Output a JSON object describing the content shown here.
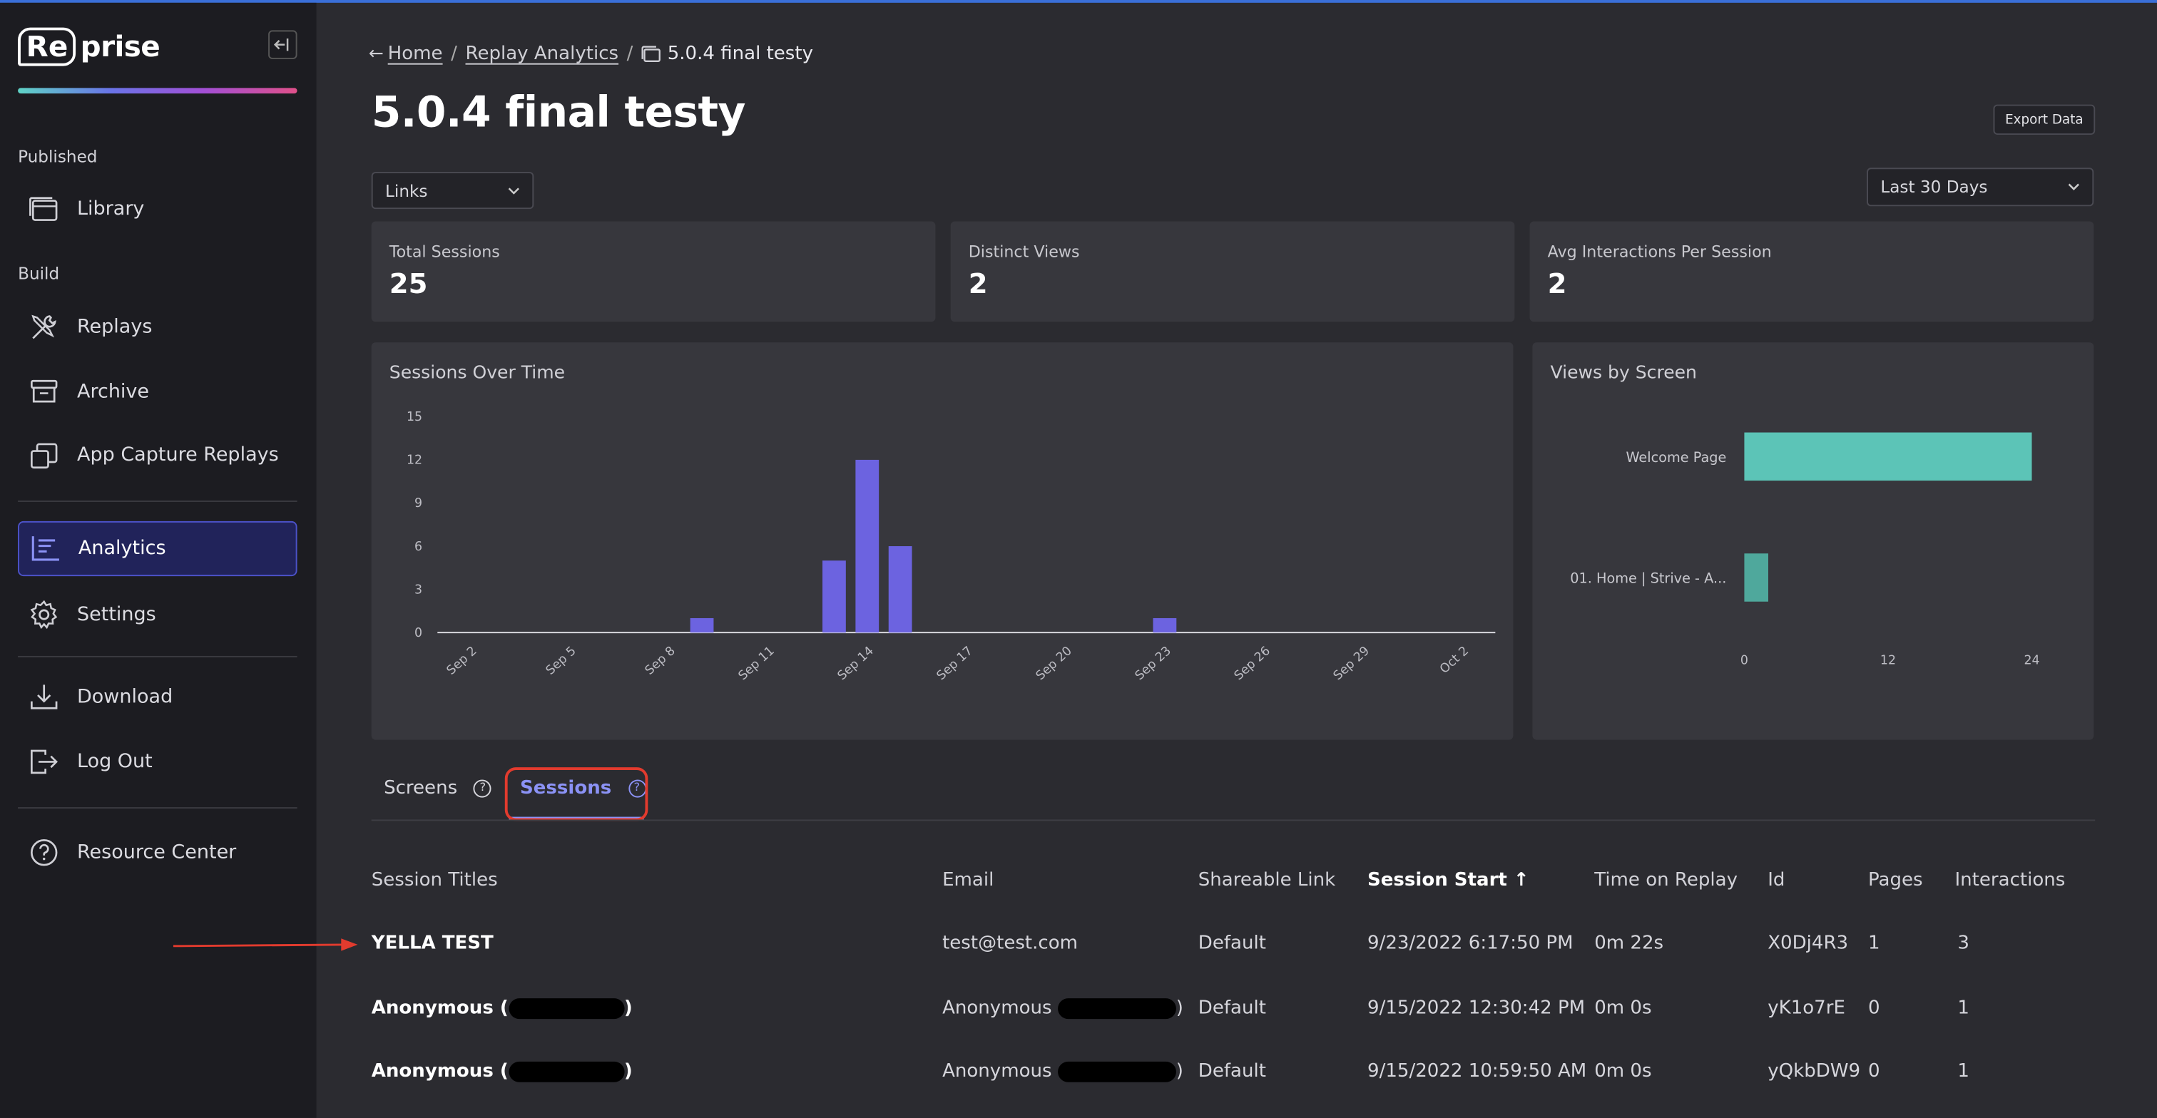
{
  "brand": {
    "logo_boxed": "Re",
    "logo_rest": "prise"
  },
  "sidebar": {
    "section_published": "Published",
    "section_build": "Build",
    "items": {
      "library": "Library",
      "replays": "Replays",
      "archive": "Archive",
      "app_capture": "App Capture Replays",
      "analytics": "Analytics",
      "settings": "Settings",
      "download": "Download",
      "logout": "Log Out",
      "resource_center": "Resource Center"
    },
    "active_item": "analytics"
  },
  "breadcrumb": {
    "home": "Home",
    "replay_analytics": "Replay Analytics",
    "current": "5.0.4 final testy"
  },
  "page": {
    "title": "5.0.4 final testy",
    "export_label": "Export Data"
  },
  "filters": {
    "type_select": "Links",
    "range_select": "Last 30 Days"
  },
  "stats": [
    {
      "label": "Total Sessions",
      "value": "25"
    },
    {
      "label": "Distinct Views",
      "value": "2"
    },
    {
      "label": "Avg Interactions Per Session",
      "value": "2"
    }
  ],
  "colors": {
    "accent": "#8b92f5",
    "bar_purple": "#6c63e0",
    "bar_teal": "#5cc4b7",
    "highlight_red": "#e23b2e"
  },
  "charts": {
    "sessions_title": "Sessions Over Time",
    "views_title": "Views by Screen"
  },
  "chart_data": [
    {
      "type": "bar",
      "title": "Sessions Over Time",
      "x_tick_labels": [
        "Sep 2",
        "Sep 5",
        "Sep 8",
        "Sep 11",
        "Sep 14",
        "Sep 17",
        "Sep 20",
        "Sep 23",
        "Sep 26",
        "Sep 29",
        "Oct 2"
      ],
      "y_ticks": [
        0,
        3,
        6,
        9,
        12,
        15
      ],
      "ylim": [
        0,
        15
      ],
      "x": [
        "Sep 9",
        "Sep 13",
        "Sep 14",
        "Sep 15",
        "Sep 23"
      ],
      "values": [
        1,
        5,
        12,
        6,
        1
      ],
      "color": "#6c63e0",
      "grid": false
    },
    {
      "type": "bar",
      "orientation": "horizontal",
      "title": "Views by Screen",
      "categories": [
        "Welcome Page",
        "01. Home | Strive - A..."
      ],
      "values": [
        24,
        2
      ],
      "x_ticks": [
        0,
        12,
        24
      ],
      "xlim": [
        0,
        24
      ],
      "color": "#5cc4b7",
      "grid": false
    }
  ],
  "tabs": {
    "screens": "Screens",
    "sessions": "Sessions",
    "help_glyph": "?"
  },
  "table": {
    "headers": {
      "title": "Session Titles",
      "email": "Email",
      "link": "Shareable Link",
      "start": "Session Start ↑",
      "time": "Time on Replay",
      "id": "Id",
      "pages": "Pages",
      "interactions": "Interactions"
    },
    "rows": [
      {
        "title": "YELLA TEST",
        "email": "test@test.com",
        "link": "Default",
        "start": "9/23/2022 6:17:50 PM",
        "time": "0m 22s",
        "id": "X0Dj4R3",
        "pages": "1",
        "interactions": "3"
      },
      {
        "title": "Anonymous",
        "email": "Anonymous",
        "link": "Default",
        "start": "9/15/2022 12:30:42 PM",
        "time": "0m 0s",
        "id": "yK1o7rE",
        "pages": "0",
        "interactions": "1"
      },
      {
        "title": "Anonymous",
        "email": "Anonymous",
        "link": "Default",
        "start": "9/15/2022 10:59:50 AM",
        "time": "0m 0s",
        "id": "yQkbDW9",
        "pages": "0",
        "interactions": "1"
      }
    ]
  }
}
